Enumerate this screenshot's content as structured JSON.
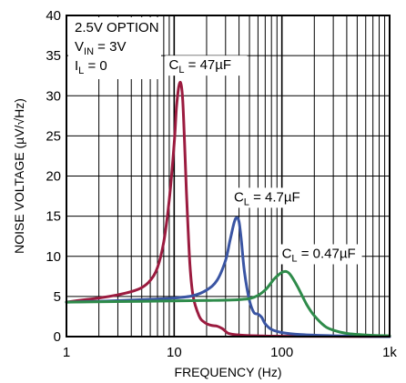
{
  "chart_data": {
    "type": "line",
    "title": "",
    "xlabel": "FREQUENCY (Hz)",
    "ylabel": "NOISE VOLTAGE (µV/√Hz)",
    "xscale": "log",
    "xlim": [
      1,
      1000
    ],
    "ylim": [
      0,
      40
    ],
    "x_tick_labels": [
      "1",
      "10",
      "100",
      "1k"
    ],
    "y_tick_labels": [
      "0",
      "5",
      "10",
      "15",
      "20",
      "25",
      "30",
      "35",
      "40"
    ],
    "grid": true,
    "conditions": {
      "option": "2.5V OPTION",
      "vin": {
        "main": "V",
        "sub": "IN",
        "rest": " = 3V"
      },
      "il": {
        "main": "I",
        "sub": "L",
        "rest": " = 0"
      }
    },
    "series": [
      {
        "name": "C = 47µF",
        "label": {
          "main": "C",
          "sub": "L",
          "rest": " = 47µF"
        },
        "color": "#9b1b3f",
        "points": [
          [
            1,
            4.3
          ],
          [
            1.5,
            4.6
          ],
          [
            2,
            4.8
          ],
          [
            3,
            5.2
          ],
          [
            4,
            5.6
          ],
          [
            5,
            6.1
          ],
          [
            6,
            7.0
          ],
          [
            7,
            8.6
          ],
          [
            8,
            11.8
          ],
          [
            9,
            17.0
          ],
          [
            10,
            24.0
          ],
          [
            10.5,
            28.5
          ],
          [
            11,
            31.0
          ],
          [
            11.5,
            31.6
          ],
          [
            12,
            29.5
          ],
          [
            12.5,
            24.0
          ],
          [
            13,
            18.0
          ],
          [
            14,
            9.0
          ],
          [
            15,
            5.0
          ],
          [
            17,
            2.6
          ],
          [
            19,
            1.8
          ],
          [
            22,
            1.4
          ],
          [
            25,
            1.3
          ],
          [
            28,
            1.0
          ],
          [
            32,
            0.4
          ],
          [
            40,
            0.2
          ],
          [
            60,
            0.1
          ],
          [
            100,
            0.05
          ],
          [
            1000,
            0.0
          ]
        ]
      },
      {
        "name": "C = 4.7µF",
        "label": {
          "main": "C",
          "sub": "L",
          "rest": " = 4.7µF"
        },
        "color": "#3a55a3",
        "points": [
          [
            1,
            4.3
          ],
          [
            2,
            4.4
          ],
          [
            5,
            4.6
          ],
          [
            10,
            4.8
          ],
          [
            15,
            5.1
          ],
          [
            20,
            5.8
          ],
          [
            25,
            7.0
          ],
          [
            30,
            9.5
          ],
          [
            33,
            12.0
          ],
          [
            36,
            14.2
          ],
          [
            38,
            14.8
          ],
          [
            40,
            14.3
          ],
          [
            42,
            12.0
          ],
          [
            45,
            8.0
          ],
          [
            50,
            4.5
          ],
          [
            55,
            3.0
          ],
          [
            60,
            2.8
          ],
          [
            65,
            2.4
          ],
          [
            70,
            1.6
          ],
          [
            80,
            0.9
          ],
          [
            100,
            0.5
          ],
          [
            150,
            0.25
          ],
          [
            300,
            0.1
          ],
          [
            1000,
            0.0
          ]
        ]
      },
      {
        "name": "C = 0.47µF",
        "label": {
          "main": "C",
          "sub": "L",
          "rest": " = 0.47µF"
        },
        "color": "#2e8b4a",
        "points": [
          [
            1,
            4.3
          ],
          [
            5,
            4.4
          ],
          [
            10,
            4.45
          ],
          [
            20,
            4.5
          ],
          [
            40,
            4.6
          ],
          [
            55,
            4.9
          ],
          [
            70,
            5.8
          ],
          [
            85,
            7.2
          ],
          [
            100,
            8.0
          ],
          [
            110,
            8.1
          ],
          [
            120,
            7.7
          ],
          [
            140,
            6.2
          ],
          [
            170,
            4.0
          ],
          [
            200,
            2.6
          ],
          [
            250,
            1.3
          ],
          [
            300,
            0.8
          ],
          [
            400,
            0.4
          ],
          [
            600,
            0.2
          ],
          [
            1000,
            0.1
          ]
        ]
      }
    ]
  }
}
